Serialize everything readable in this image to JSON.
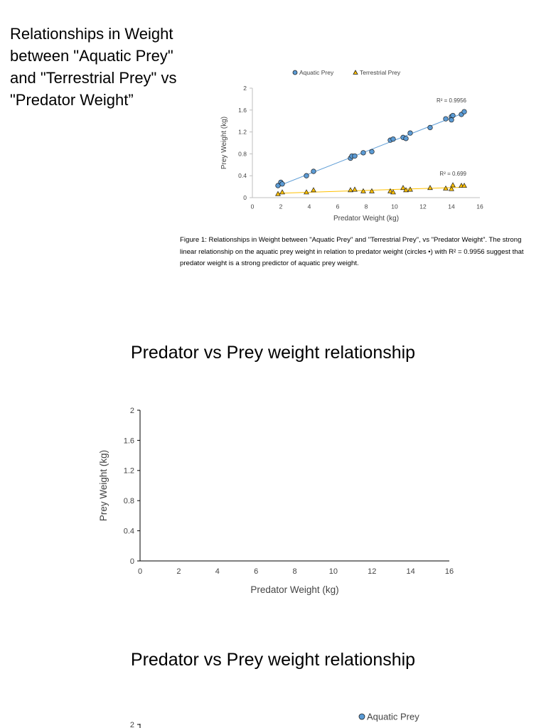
{
  "side_title": "Relationships in Weight between \"Aquatic Prey\" and \"Terrestrial Prey\" vs \"Predator Weight”",
  "figure_caption": "Figure 1: Relationships in Weight between \"Aquatic Prey\" and \"Terrestrial Prey\", vs \"Predator Weight”. The strong linear relationship on the aquatic prey weight in relation to predator weight (circles •) with R² = 0.9956 suggest that predator weight is a strong predictor of aquatic prey weight.",
  "headings": [
    "Predator vs Prey weight relationship",
    "Predator vs Prey weight relationship"
  ],
  "colors": {
    "aquatic": "#5b9bd5",
    "terrestrial": "#ffc000",
    "marker_edge": "#1f1f1f",
    "axis": "#000000"
  },
  "chart_data": [
    {
      "type": "scatter",
      "xlabel": "Predator Weight (kg)",
      "ylabel": "Prey Weight (kg)",
      "xlim": [
        0,
        16
      ],
      "ylim": [
        0,
        2
      ],
      "x_ticks": [
        "0",
        "2",
        "4",
        "6",
        "8",
        "10",
        "12",
        "14",
        "16"
      ],
      "y_ticks": [
        "0",
        "0.4",
        "0.8",
        "1.2",
        "1.6",
        "2"
      ],
      "grid": false,
      "legend_position": "top",
      "series": [
        {
          "name": "Aquatic Prey",
          "marker": "circle",
          "points": [
            [
              1.8,
              0.22
            ],
            [
              2.0,
              0.28
            ],
            [
              2.1,
              0.25
            ],
            [
              3.8,
              0.4
            ],
            [
              4.3,
              0.48
            ],
            [
              6.9,
              0.72
            ],
            [
              7.0,
              0.76
            ],
            [
              7.2,
              0.76
            ],
            [
              7.8,
              0.82
            ],
            [
              8.4,
              0.84
            ],
            [
              9.7,
              1.05
            ],
            [
              9.9,
              1.07
            ],
            [
              10.6,
              1.1
            ],
            [
              10.8,
              1.08
            ],
            [
              11.1,
              1.18
            ],
            [
              12.5,
              1.28
            ],
            [
              13.6,
              1.44
            ],
            [
              14.0,
              1.48
            ],
            [
              14.1,
              1.5
            ],
            [
              14.0,
              1.42
            ],
            [
              14.7,
              1.52
            ],
            [
              14.9,
              1.57
            ]
          ],
          "trendline": {
            "x": [
              1.8,
              14.9
            ],
            "y": [
              0.21,
              1.55
            ]
          },
          "r2_label": "R² = 0.9956"
        },
        {
          "name": "Terrestrial Prey",
          "marker": "triangle",
          "points": [
            [
              1.8,
              0.07
            ],
            [
              2.1,
              0.1
            ],
            [
              3.8,
              0.1
            ],
            [
              4.3,
              0.14
            ],
            [
              6.9,
              0.14
            ],
            [
              7.2,
              0.15
            ],
            [
              7.8,
              0.12
            ],
            [
              8.4,
              0.12
            ],
            [
              9.7,
              0.12
            ],
            [
              9.9,
              0.1
            ],
            [
              10.6,
              0.18
            ],
            [
              10.8,
              0.14
            ],
            [
              11.1,
              0.15
            ],
            [
              12.5,
              0.18
            ],
            [
              13.6,
              0.17
            ],
            [
              14.0,
              0.16
            ],
            [
              14.1,
              0.23
            ],
            [
              14.7,
              0.22
            ],
            [
              14.9,
              0.22
            ]
          ],
          "trendline": {
            "x": [
              1.8,
              14.9
            ],
            "y": [
              0.08,
              0.19
            ]
          },
          "r2_label": "R² = 0.699"
        }
      ]
    },
    {
      "type": "scatter",
      "xlabel": "Predator Weight (kg)",
      "ylabel": "Prey Weight (kg)",
      "xlim": [
        0,
        16
      ],
      "ylim": [
        0,
        2
      ],
      "x_ticks": [
        "0",
        "2",
        "4",
        "6",
        "8",
        "10",
        "12",
        "14",
        "16"
      ],
      "y_ticks": [
        "0",
        "0.4",
        "0.8",
        "1.2",
        "1.6",
        "2"
      ],
      "grid": false,
      "series": []
    },
    {
      "type": "scatter",
      "y_ticks": [
        "2"
      ],
      "legend_position": "top-right",
      "series": [
        {
          "name": "Aquatic Prey",
          "marker": "circle",
          "points": []
        }
      ]
    }
  ]
}
